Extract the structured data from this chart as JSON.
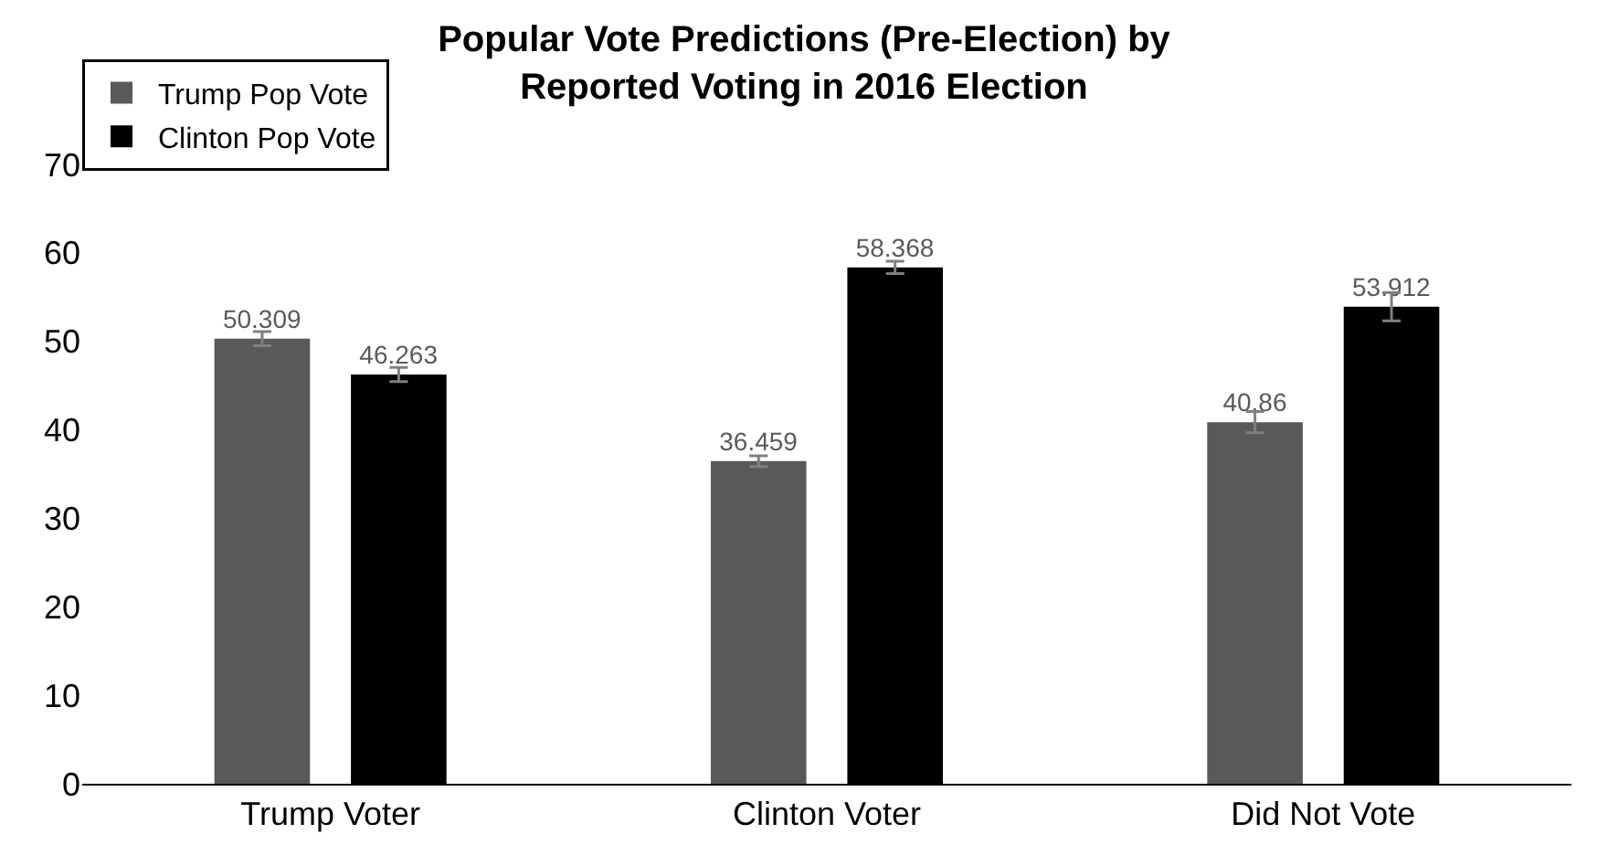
{
  "chart_data": {
    "type": "bar",
    "title": "Popular Vote Predictions (Pre-Election) by\nReported Voting in 2016 Election",
    "categories": [
      "Trump Voter",
      "Clinton Voter",
      "Did Not Vote"
    ],
    "series": [
      {
        "name": "Trump Pop Vote",
        "color": "#595959",
        "values": [
          50.309,
          36.459,
          40.86
        ],
        "errors": [
          0.8,
          0.6,
          1.2
        ]
      },
      {
        "name": "Clinton Pop Vote",
        "color": "#000000",
        "values": [
          46.263,
          58.368,
          53.912
        ],
        "errors": [
          0.8,
          0.7,
          1.6
        ]
      }
    ],
    "ylim": [
      0,
      70
    ],
    "yticks": [
      0,
      10,
      20,
      30,
      40,
      50,
      60,
      70
    ],
    "grid": false,
    "legend": "top left",
    "data_labels": true
  }
}
